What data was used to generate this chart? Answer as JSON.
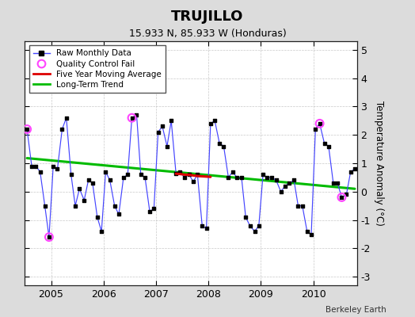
{
  "title": "TRUJILLO",
  "subtitle": "15.933 N, 85.933 W (Honduras)",
  "credit": "Berkeley Earth",
  "ylabel": "Temperature Anomaly (°C)",
  "ylim": [
    -3.3,
    5.3
  ],
  "yticks": [
    -3,
    -2,
    -1,
    0,
    1,
    2,
    3,
    4,
    5
  ],
  "xlim": [
    2004.5,
    2010.83
  ],
  "background_color": "#dcdcdc",
  "plot_background": "#ffffff",
  "raw_color": "#4444ff",
  "raw_marker_color": "#000000",
  "qc_color": "#ff44ff",
  "ma_color": "#dd0000",
  "trend_color": "#00bb00",
  "raw_monthly_times": [
    2004.54,
    2004.63,
    2004.71,
    2004.79,
    2004.88,
    2004.96,
    2005.04,
    2005.12,
    2005.21,
    2005.29,
    2005.38,
    2005.46,
    2005.54,
    2005.63,
    2005.71,
    2005.79,
    2005.88,
    2005.96,
    2006.04,
    2006.12,
    2006.21,
    2006.29,
    2006.38,
    2006.46,
    2006.54,
    2006.63,
    2006.71,
    2006.79,
    2006.88,
    2006.96,
    2007.04,
    2007.12,
    2007.21,
    2007.29,
    2007.38,
    2007.46,
    2007.54,
    2007.63,
    2007.71,
    2007.79,
    2007.88,
    2007.96,
    2008.04,
    2008.12,
    2008.21,
    2008.29,
    2008.38,
    2008.46,
    2008.54,
    2008.63,
    2008.71,
    2008.79,
    2008.88,
    2008.96,
    2009.04,
    2009.12,
    2009.21,
    2009.29,
    2009.38,
    2009.46,
    2009.54,
    2009.63,
    2009.71,
    2009.79,
    2009.88,
    2009.96,
    2010.04,
    2010.12,
    2010.21,
    2010.29,
    2010.38,
    2010.46,
    2010.54,
    2010.63,
    2010.71,
    2010.79
  ],
  "raw_monthly_data": [
    2.2,
    0.9,
    0.9,
    0.7,
    -0.5,
    -1.6,
    0.9,
    0.8,
    2.2,
    2.6,
    0.6,
    -0.5,
    0.1,
    -0.3,
    0.4,
    0.3,
    -0.9,
    -1.4,
    0.7,
    0.4,
    -0.5,
    -0.8,
    0.5,
    0.6,
    2.6,
    2.7,
    0.6,
    0.5,
    -0.7,
    -0.6,
    2.1,
    2.3,
    1.6,
    2.5,
    0.65,
    0.7,
    0.5,
    0.6,
    0.35,
    0.6,
    -1.2,
    -1.3,
    2.4,
    2.5,
    1.7,
    1.6,
    0.5,
    0.7,
    0.5,
    0.5,
    -0.9,
    -1.2,
    -1.4,
    -1.2,
    0.6,
    0.5,
    0.5,
    0.4,
    0.0,
    0.2,
    0.3,
    0.4,
    -0.5,
    -0.5,
    -1.4,
    -1.5,
    2.2,
    2.4,
    1.7,
    1.6,
    0.3,
    0.3,
    -0.2,
    -0.1,
    0.7,
    0.8
  ],
  "qc_fail_times": [
    2004.54,
    2004.96,
    2006.54,
    2010.12,
    2010.54
  ],
  "qc_fail_values": [
    2.2,
    -1.6,
    2.6,
    2.4,
    -0.2
  ],
  "moving_avg_times": [
    2007.38,
    2007.46,
    2007.54,
    2007.63,
    2007.71,
    2007.79,
    2007.88,
    2007.96,
    2008.04
  ],
  "moving_avg_values": [
    0.63,
    0.62,
    0.6,
    0.59,
    0.57,
    0.55,
    0.54,
    0.53,
    0.52
  ],
  "trend_x": [
    2004.54,
    2010.79
  ],
  "trend_y": [
    1.18,
    0.1
  ],
  "xticks": [
    2005,
    2006,
    2007,
    2008,
    2009,
    2010
  ],
  "legend_labels": [
    "Raw Monthly Data",
    "Quality Control Fail",
    "Five Year Moving Average",
    "Long-Term Trend"
  ]
}
